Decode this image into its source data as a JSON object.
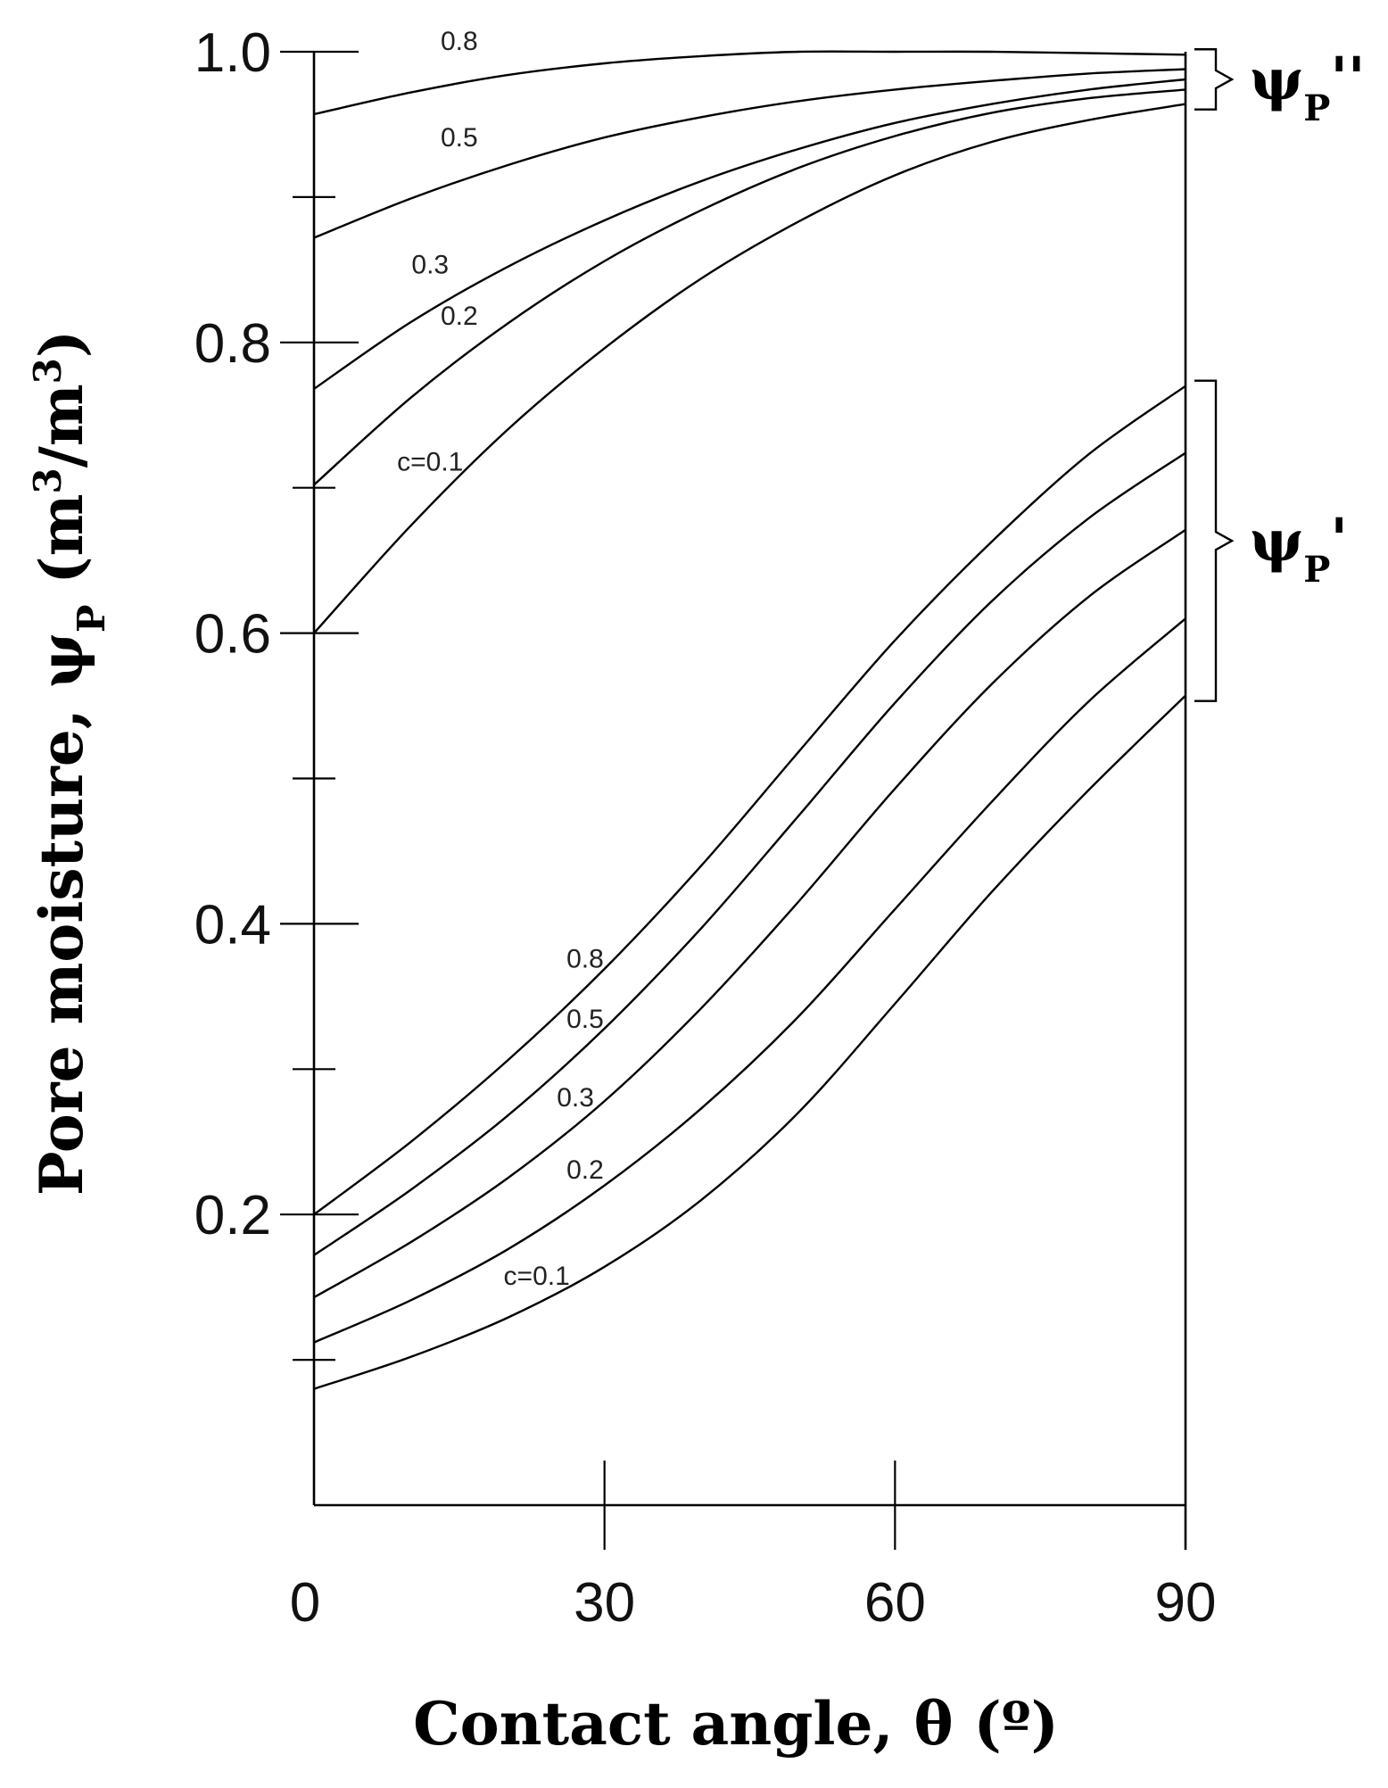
{
  "chart_data": {
    "type": "line",
    "xlabel": "Contact angle, θ (º)",
    "ylabel_parts": {
      "lead": "Pore moisture, ψ",
      "sub": "P",
      "unit_open": " (m",
      "sup1": "3",
      "unit_mid": "/m",
      "sup2": "3",
      "unit_close": ")"
    },
    "xlim": [
      0,
      90
    ],
    "ylim": [
      0,
      1.0
    ],
    "x_ticks": [
      0,
      30,
      60,
      90
    ],
    "x_tick_labels": [
      "0",
      "30",
      "60",
      "90"
    ],
    "y_major_ticks": [
      0.2,
      0.4,
      0.6,
      0.8,
      1.0
    ],
    "y_tick_labels": [
      "0.2",
      "0.4",
      "0.6",
      "0.8",
      "1.0"
    ],
    "y_minor_ticks": [
      0.1,
      0.3,
      0.5,
      0.7,
      0.9
    ],
    "grid": false,
    "x": [
      0,
      10,
      20,
      30,
      40,
      50,
      60,
      70,
      80,
      90
    ],
    "groups": [
      {
        "label_main": "ψ",
        "label_sub": "P",
        "label_prime": "''",
        "series": [
          {
            "name": "0.8",
            "values": [
              0.957,
              0.972,
              0.984,
              0.992,
              0.997,
              1.0,
              1.0,
              1.0,
              0.999,
              0.998
            ]
          },
          {
            "name": "0.5",
            "values": [
              0.872,
              0.899,
              0.922,
              0.941,
              0.955,
              0.966,
              0.974,
              0.98,
              0.985,
              0.988
            ]
          },
          {
            "name": "0.3",
            "values": [
              0.768,
              0.814,
              0.852,
              0.884,
              0.911,
              0.933,
              0.951,
              0.964,
              0.974,
              0.981
            ]
          },
          {
            "name": "0.2",
            "values": [
              0.702,
              0.762,
              0.813,
              0.856,
              0.891,
              0.92,
              0.942,
              0.958,
              0.968,
              0.974
            ]
          },
          {
            "name": "c=0.1",
            "values": [
              0.6,
              0.674,
              0.74,
              0.796,
              0.844,
              0.883,
              0.915,
              0.938,
              0.953,
              0.964
            ]
          }
        ]
      },
      {
        "label_main": "ψ",
        "label_sub": "P",
        "label_prime": "'",
        "series": [
          {
            "name": "0.8",
            "values": [
              0.2,
              0.25,
              0.306,
              0.369,
              0.44,
              0.518,
              0.595,
              0.663,
              0.723,
              0.77
            ]
          },
          {
            "name": "0.5",
            "values": [
              0.172,
              0.217,
              0.268,
              0.328,
              0.397,
              0.474,
              0.552,
              0.622,
              0.679,
              0.724
            ]
          },
          {
            "name": "0.3",
            "values": [
              0.143,
              0.181,
              0.225,
              0.278,
              0.342,
              0.415,
              0.493,
              0.565,
              0.625,
              0.671
            ]
          },
          {
            "name": "0.2",
            "values": [
              0.112,
              0.141,
              0.176,
              0.22,
              0.273,
              0.336,
              0.41,
              0.484,
              0.553,
              0.61
            ]
          },
          {
            "name": "c=0.1",
            "values": [
              0.08,
              0.102,
              0.129,
              0.164,
              0.21,
              0.27,
              0.345,
              0.422,
              0.492,
              0.557
            ]
          }
        ]
      }
    ]
  }
}
